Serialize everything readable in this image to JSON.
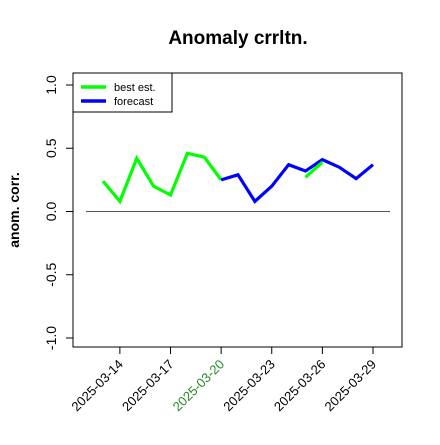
{
  "chart_data": {
    "type": "line",
    "title": "Anomaly crrltn.",
    "ylabel": "anom. corr.",
    "xlabel": "",
    "ylim": [
      -1.0,
      1.0
    ],
    "yticks": [
      "-1.0",
      "-0.5",
      "0.0",
      "0.5",
      "1.0"
    ],
    "x": [
      "2025-03-13",
      "2025-03-14",
      "2025-03-15",
      "2025-03-16",
      "2025-03-17",
      "2025-03-18",
      "2025-03-19",
      "2025-03-20",
      "2025-03-21",
      "2025-03-22",
      "2025-03-23",
      "2025-03-24",
      "2025-03-25",
      "2025-03-26",
      "2025-03-27",
      "2025-03-28",
      "2025-03-29"
    ],
    "xtick_labels": [
      {
        "text": "2025-03-14",
        "date": "2025-03-14",
        "color": "#000000"
      },
      {
        "text": "2025-03-17",
        "date": "2025-03-17",
        "color": "#000000"
      },
      {
        "text": "2025-03-20",
        "date": "2025-03-20",
        "color": "#228B22"
      },
      {
        "text": "2025-03-23",
        "date": "2025-03-23",
        "color": "#000000"
      },
      {
        "text": "2025-03-26",
        "date": "2025-03-26",
        "color": "#000000"
      },
      {
        "text": "2025-03-29",
        "date": "2025-03-29",
        "color": "#000000"
      }
    ],
    "reference_line": 0.0,
    "grid": false,
    "legend_position": "top-left",
    "series": [
      {
        "name": "best est.",
        "color": "#00ff00",
        "values": [
          0.24,
          0.08,
          0.42,
          0.2,
          0.13,
          0.46,
          0.43,
          0.25,
          null,
          null,
          null,
          null,
          null,
          null,
          null,
          null,
          null
        ]
      },
      {
        "name": "forecast",
        "color": "#0000ff",
        "values": [
          null,
          null,
          null,
          null,
          null,
          null,
          null,
          0.25,
          0.29,
          0.08,
          0.2,
          0.37,
          0.32,
          0.41,
          0.35,
          0.26,
          0.37
        ]
      },
      {
        "name": "best est.",
        "color": "#00ff00",
        "legend": false,
        "values": [
          null,
          null,
          null,
          null,
          null,
          null,
          null,
          null,
          null,
          null,
          null,
          null,
          0.27,
          0.39,
          null,
          null,
          null
        ]
      }
    ]
  }
}
